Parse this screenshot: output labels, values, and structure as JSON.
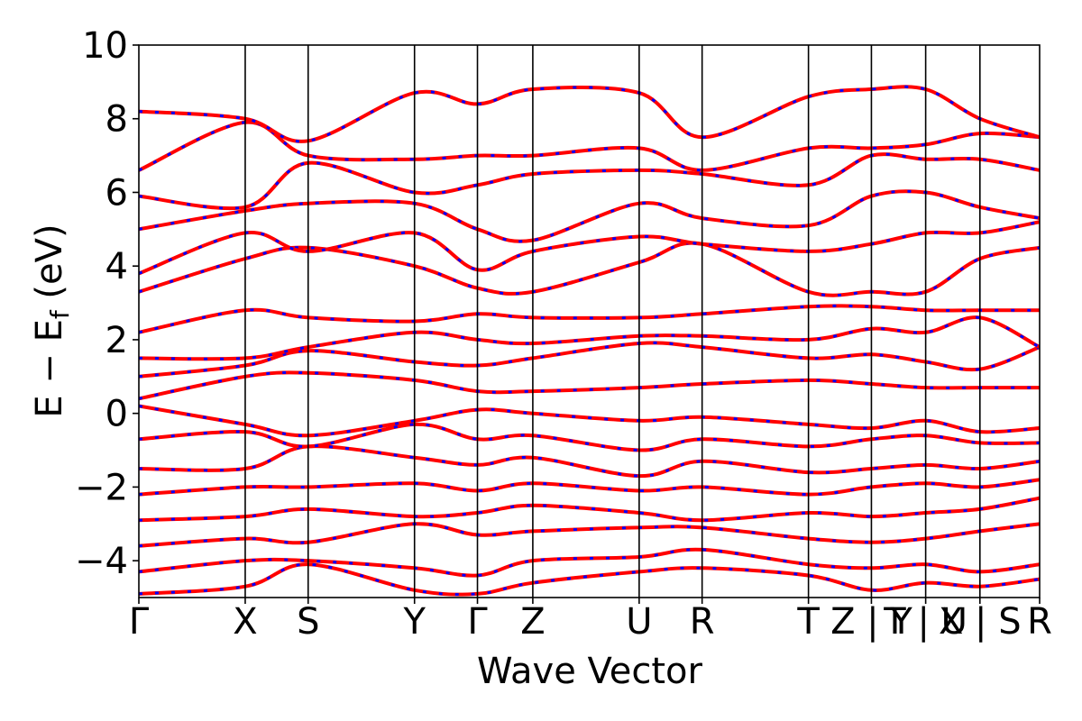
{
  "chart_data": {
    "type": "line",
    "title": "",
    "xlabel": "Wave Vector",
    "ylabel": "E − E",
    "ylabel_subscript": "f",
    "ylabel_unit": " (eV)",
    "ylim": [
      -5,
      10
    ],
    "yticks": [
      -4,
      -2,
      0,
      2,
      4,
      6,
      8,
      10
    ],
    "ytick_labels": [
      "−4",
      "−2",
      "0",
      "2",
      "4",
      "6",
      "8",
      "10"
    ],
    "xlim": [
      0,
      8.3
    ],
    "kpoints": [
      {
        "label": "Γ",
        "x": 0.0
      },
      {
        "label": "X",
        "x": 0.98
      },
      {
        "label": "S",
        "x": 1.56
      },
      {
        "label": "Y",
        "x": 2.54
      },
      {
        "label": "Γ",
        "x": 3.12
      },
      {
        "label": "Z",
        "x": 3.63
      },
      {
        "label": "U",
        "x": 4.61
      },
      {
        "label": "R",
        "x": 5.19
      },
      {
        "label": "T",
        "x": 6.17
      },
      {
        "label": "Z | Y",
        "x": 6.75
      },
      {
        "label": "T | U",
        "x": 7.25
      },
      {
        "label": "X | S",
        "x": 7.75
      },
      {
        "label": "R",
        "x": 8.3
      }
    ],
    "series_colors": {
      "primary": "#ff0000",
      "overlay": "#0000ff"
    },
    "bands": [
      {
        "x": [
          0,
          0.98,
          1.56,
          2.54,
          3.12,
          3.63,
          4.61,
          5.19,
          6.17,
          6.75,
          7.25,
          7.75,
          8.3
        ],
        "values": [
          -4.9,
          -4.7,
          -4.1,
          -4.8,
          -4.9,
          -4.6,
          -4.3,
          -4.2,
          -4.4,
          -4.8,
          -4.6,
          -4.7,
          -4.5
        ]
      },
      {
        "x": [
          0,
          0.98,
          1.56,
          2.54,
          3.12,
          3.63,
          4.61,
          5.19,
          6.17,
          6.75,
          7.25,
          7.75,
          8.3
        ],
        "values": [
          -4.3,
          -4.0,
          -4.0,
          -4.2,
          -4.4,
          -4.0,
          -3.9,
          -3.7,
          -4.1,
          -4.2,
          -4.1,
          -4.3,
          -4.1
        ]
      },
      {
        "x": [
          0,
          0.98,
          1.56,
          2.54,
          3.12,
          3.63,
          4.61,
          5.19,
          6.17,
          6.75,
          7.25,
          7.75,
          8.3
        ],
        "values": [
          -3.6,
          -3.4,
          -3.5,
          -3.0,
          -3.3,
          -3.2,
          -3.1,
          -3.1,
          -3.4,
          -3.5,
          -3.4,
          -3.2,
          -3.0
        ]
      },
      {
        "x": [
          0,
          0.98,
          1.56,
          2.54,
          3.12,
          3.63,
          4.61,
          5.19,
          6.17,
          6.75,
          7.25,
          7.75,
          8.3
        ],
        "values": [
          -2.9,
          -2.8,
          -2.6,
          -2.8,
          -2.7,
          -2.5,
          -2.7,
          -2.9,
          -2.7,
          -2.8,
          -2.7,
          -2.6,
          -2.3
        ]
      },
      {
        "x": [
          0,
          0.98,
          1.56,
          2.54,
          3.12,
          3.63,
          4.61,
          5.19,
          6.17,
          6.75,
          7.25,
          7.75,
          8.3
        ],
        "values": [
          -2.2,
          -2.0,
          -2.0,
          -1.9,
          -2.1,
          -1.9,
          -2.1,
          -2.0,
          -2.2,
          -2.0,
          -1.9,
          -2.0,
          -1.8
        ]
      },
      {
        "x": [
          0,
          0.98,
          1.56,
          2.54,
          3.12,
          3.63,
          4.61,
          5.19,
          6.17,
          6.75,
          7.25,
          7.75,
          8.3
        ],
        "values": [
          -1.5,
          -1.5,
          -0.9,
          -1.2,
          -1.4,
          -1.2,
          -1.7,
          -1.3,
          -1.6,
          -1.5,
          -1.4,
          -1.5,
          -1.3
        ]
      },
      {
        "x": [
          0,
          0.98,
          1.56,
          2.54,
          3.12,
          3.63,
          4.61,
          5.19,
          6.17,
          6.75,
          7.25,
          7.75,
          8.3
        ],
        "values": [
          -0.7,
          -0.5,
          -0.9,
          -0.3,
          -0.7,
          -0.6,
          -1.0,
          -0.7,
          -0.9,
          -0.7,
          -0.6,
          -0.8,
          -0.8
        ]
      },
      {
        "x": [
          0,
          0.98,
          1.56,
          2.54,
          3.12,
          3.63,
          4.61,
          5.19,
          6.17,
          6.75,
          7.25,
          7.75,
          8.3
        ],
        "values": [
          0.2,
          -0.3,
          -0.6,
          -0.2,
          0.1,
          0.0,
          -0.2,
          -0.1,
          -0.3,
          -0.4,
          -0.2,
          -0.5,
          -0.4
        ]
      },
      {
        "x": [
          0,
          0.98,
          1.56,
          2.54,
          3.12,
          3.63,
          4.61,
          5.19,
          6.17,
          6.75,
          7.25,
          7.75,
          8.3
        ],
        "values": [
          0.4,
          1.0,
          1.1,
          0.9,
          0.6,
          0.6,
          0.7,
          0.8,
          0.9,
          0.8,
          0.7,
          0.7,
          0.7
        ]
      },
      {
        "x": [
          0,
          0.98,
          1.56,
          2.54,
          3.12,
          3.63,
          4.61,
          5.19,
          6.17,
          6.75,
          7.25,
          7.75,
          8.3
        ],
        "values": [
          1.0,
          1.3,
          1.7,
          1.4,
          1.3,
          1.5,
          1.9,
          1.8,
          1.5,
          1.6,
          1.4,
          1.2,
          1.8
        ]
      },
      {
        "x": [
          0,
          0.98,
          1.56,
          2.54,
          3.12,
          3.63,
          4.61,
          5.19,
          6.17,
          6.75,
          7.25,
          7.75,
          8.3
        ],
        "values": [
          1.5,
          1.5,
          1.8,
          2.2,
          2.0,
          1.9,
          2.1,
          2.1,
          2.0,
          2.3,
          2.2,
          2.6,
          1.8
        ]
      },
      {
        "x": [
          0,
          0.98,
          1.56,
          2.54,
          3.12,
          3.63,
          4.61,
          5.19,
          6.17,
          6.75,
          7.25,
          7.75,
          8.3
        ],
        "values": [
          2.2,
          2.8,
          2.6,
          2.5,
          2.7,
          2.6,
          2.6,
          2.7,
          2.9,
          2.9,
          2.8,
          2.8,
          2.8
        ]
      },
      {
        "x": [
          0,
          0.98,
          1.56,
          2.54,
          3.12,
          3.63,
          4.61,
          5.19,
          6.17,
          6.75,
          7.25,
          7.75,
          8.3
        ],
        "values": [
          3.3,
          4.2,
          4.5,
          4.0,
          3.4,
          3.3,
          4.1,
          4.6,
          3.3,
          3.3,
          3.3,
          4.2,
          4.5
        ]
      },
      {
        "x": [
          0,
          0.98,
          1.56,
          2.54,
          3.12,
          3.63,
          4.61,
          5.19,
          6.17,
          6.75,
          7.25,
          7.75,
          8.3
        ],
        "values": [
          3.8,
          4.9,
          4.4,
          4.9,
          3.9,
          4.4,
          4.8,
          4.6,
          4.4,
          4.6,
          4.9,
          4.9,
          5.2
        ]
      },
      {
        "x": [
          0,
          0.98,
          1.56,
          2.54,
          3.12,
          3.63,
          4.61,
          5.19,
          6.17,
          6.75,
          7.25,
          7.75,
          8.3
        ],
        "values": [
          5.0,
          5.5,
          5.7,
          5.7,
          5.0,
          4.7,
          5.7,
          5.3,
          5.1,
          5.9,
          6.0,
          5.6,
          5.3
        ]
      },
      {
        "x": [
          0,
          0.98,
          1.56,
          2.54,
          3.12,
          3.63,
          4.61,
          5.19,
          6.17,
          6.75,
          7.25,
          7.75,
          8.3
        ],
        "values": [
          5.9,
          5.6,
          6.8,
          6.0,
          6.2,
          6.5,
          6.6,
          6.5,
          6.2,
          7.0,
          6.9,
          6.9,
          6.6
        ]
      },
      {
        "x": [
          0,
          0.98,
          1.56,
          2.54,
          3.12,
          3.63,
          4.61,
          5.19,
          6.17,
          6.75,
          7.25,
          7.75,
          8.3
        ],
        "values": [
          6.6,
          7.9,
          7.0,
          6.9,
          7.0,
          7.0,
          7.2,
          6.6,
          7.2,
          7.2,
          7.3,
          7.6,
          7.5
        ]
      },
      {
        "x": [
          0,
          0.98,
          1.56,
          2.54,
          3.12,
          3.63,
          4.61,
          5.19,
          6.17,
          6.75,
          7.25,
          7.75,
          8.3
        ],
        "values": [
          8.2,
          8.0,
          7.4,
          8.7,
          8.4,
          8.8,
          8.7,
          7.5,
          8.6,
          8.8,
          8.8,
          8.0,
          7.5
        ]
      }
    ]
  }
}
